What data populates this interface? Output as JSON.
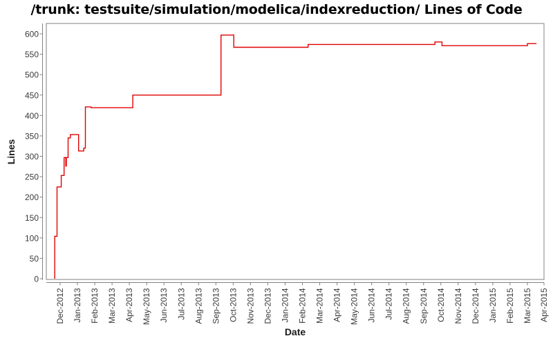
{
  "title": "/trunk: testsuite/simulation/modelica/indexreduction/ Lines of Code",
  "chart_data": {
    "type": "line",
    "step": true,
    "title": "/trunk: testsuite/simulation/modelica/indexreduction/ Lines of Code",
    "xlabel": "Date",
    "ylabel": "Lines",
    "ylim": [
      0,
      600
    ],
    "y_ticks": [
      0,
      50,
      100,
      150,
      200,
      250,
      300,
      350,
      400,
      450,
      500,
      550,
      600
    ],
    "x_tick_labels": [
      "Dec-2012",
      "Jan-2013",
      "Feb-2013",
      "Mar-2013",
      "Apr-2013",
      "May-2013",
      "Jun-2013",
      "Jul-2013",
      "Aug-2013",
      "Sep-2013",
      "Oct-2013",
      "Nov-2013",
      "Dec-2013",
      "Jan-2014",
      "Feb-2014",
      "Mar-2014",
      "Apr-2014",
      "May-2014",
      "Jun-2014",
      "Jul-2014",
      "Aug-2014",
      "Sep-2014",
      "Oct-2014",
      "Nov-2014",
      "Dec-2014",
      "Jan-2015",
      "Feb-2015",
      "Mar-2015",
      "Apr-2015"
    ],
    "grid": false,
    "legend": "none",
    "axis_color": "#808080",
    "tick_label_color": "#3a3a3a",
    "series": [
      {
        "name": "Lines of Code",
        "color": "#e00000",
        "points": [
          {
            "date": "2012-11-22",
            "loc": 0
          },
          {
            "date": "2012-11-22",
            "loc": 104
          },
          {
            "date": "2012-11-26",
            "loc": 225
          },
          {
            "date": "2012-12-03",
            "loc": 253
          },
          {
            "date": "2012-12-08",
            "loc": 297
          },
          {
            "date": "2012-12-11",
            "loc": 276
          },
          {
            "date": "2012-12-12",
            "loc": 297
          },
          {
            "date": "2012-12-15",
            "loc": 345
          },
          {
            "date": "2012-12-19",
            "loc": 353
          },
          {
            "date": "2013-01-03",
            "loc": 313
          },
          {
            "date": "2013-01-12",
            "loc": 320
          },
          {
            "date": "2013-01-15",
            "loc": 421
          },
          {
            "date": "2013-01-25",
            "loc": 419
          },
          {
            "date": "2013-04-07",
            "loc": 450
          },
          {
            "date": "2013-09-10",
            "loc": 597
          },
          {
            "date": "2013-10-02",
            "loc": 567
          },
          {
            "date": "2014-02-11",
            "loc": 574
          },
          {
            "date": "2014-09-21",
            "loc": 580
          },
          {
            "date": "2014-10-03",
            "loc": 571
          },
          {
            "date": "2015-03-01",
            "loc": 576
          },
          {
            "date": "2015-03-17",
            "loc": 576
          }
        ]
      }
    ]
  }
}
